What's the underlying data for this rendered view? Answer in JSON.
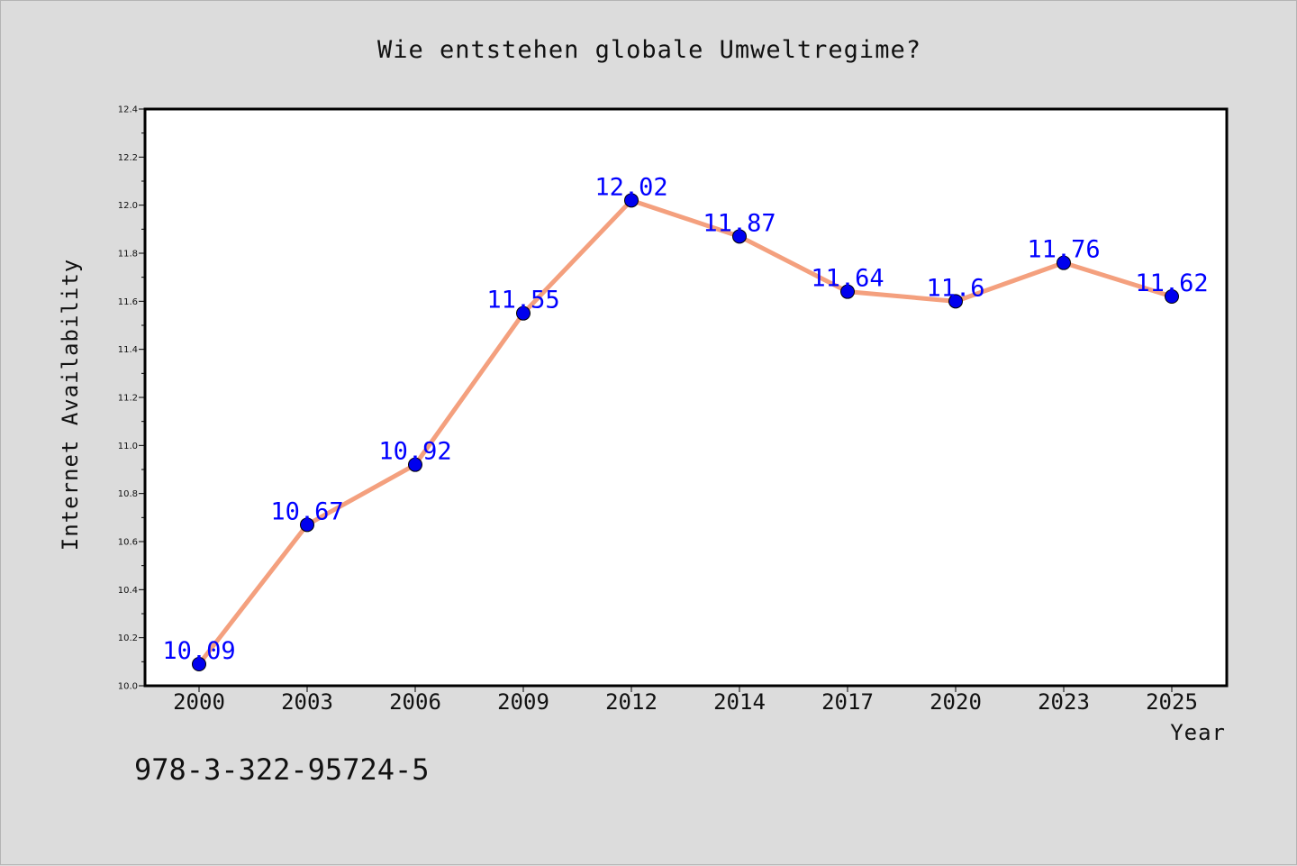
{
  "chart_data": {
    "type": "line",
    "title": "Wie entstehen globale Umweltregime?",
    "xlabel": "Year",
    "ylabel": "Internet Availability",
    "categories": [
      "2000",
      "2003",
      "2006",
      "2009",
      "2012",
      "2014",
      "2017",
      "2020",
      "2023",
      "2025"
    ],
    "values": [
      10.09,
      10.67,
      10.92,
      11.55,
      12.02,
      11.87,
      11.64,
      11.6,
      11.76,
      11.62
    ],
    "data_labels": [
      "10.09",
      "10.67",
      "10.92",
      "11.55",
      "12.02",
      "11.87",
      "11.64",
      "11.6",
      "11.76",
      "11.62"
    ],
    "ylim": [
      10.0,
      12.4
    ],
    "yticks": [
      "10.0",
      "10.2",
      "10.4",
      "10.6",
      "10.8",
      "11.0",
      "11.2",
      "11.4",
      "11.6",
      "11.8",
      "12.0",
      "12.2",
      "12.4"
    ],
    "grid": false,
    "legend": "none",
    "colors": {
      "line": "#f4a07e",
      "marker": "#0000ee",
      "label": "#0000ff",
      "background": "#dcdcdc",
      "plot_area": "#ffffff"
    }
  },
  "footer": {
    "isbn": "978-3-322-95724-5"
  }
}
